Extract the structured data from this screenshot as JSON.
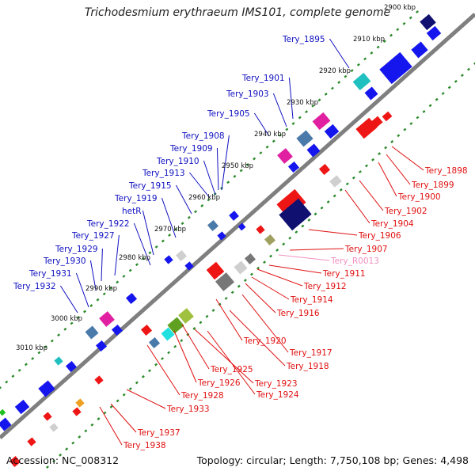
{
  "title": "Trichodesmium erythraeum IMS101, complete genome",
  "accession": "Accession: NC_008312",
  "summary": "Topology: circular; Length: 7,750,108 bp; Genes: 4,498",
  "colors": {
    "backbone": "#7f7f7f",
    "tick": "#2a8a2a",
    "forward_label": "#1010c0",
    "reverse_label": "#e01010",
    "rna_label": "#f090c0",
    "forward_gene": "#1515ee",
    "reverse_gene": "#ee1515"
  },
  "scale_labels": [
    "2900 kbp",
    "2910 kbp",
    "2920 kbp",
    "2930 kbp",
    "2940 kbp",
    "2950 kbp",
    "2960 kbp",
    "2970 kbp",
    "2980 kbp",
    "2990 kbp",
    "3000 kbp",
    "3010 kbp"
  ],
  "forward_labels": [
    "Tery_1895",
    "Tery_1901",
    "Tery_1903",
    "Tery_1905",
    "Tery_1908",
    "Tery_1909",
    "Tery_1910",
    "Tery_1913",
    "Tery_1915",
    "Tery_1919",
    "hetR",
    "Tery_1922",
    "Tery_1927",
    "Tery_1929",
    "Tery_1930",
    "Tery_1931",
    "Tery_1932"
  ],
  "reverse_labels": [
    "Tery_1898",
    "Tery_1899",
    "Tery_1900",
    "Tery_1902",
    "Tery_1904",
    "Tery_1906",
    "Tery_1907",
    "Tery_R0013",
    "Tery_1911",
    "Tery_1912",
    "Tery_1914",
    "Tery_1916",
    "Tery_1920",
    "Tery_1917",
    "Tery_1918",
    "Tery_1925",
    "Tery_1923",
    "Tery_1926",
    "Tery_1924",
    "Tery_1928",
    "Tery_1933",
    "Tery_1937",
    "Tery_1938"
  ]
}
